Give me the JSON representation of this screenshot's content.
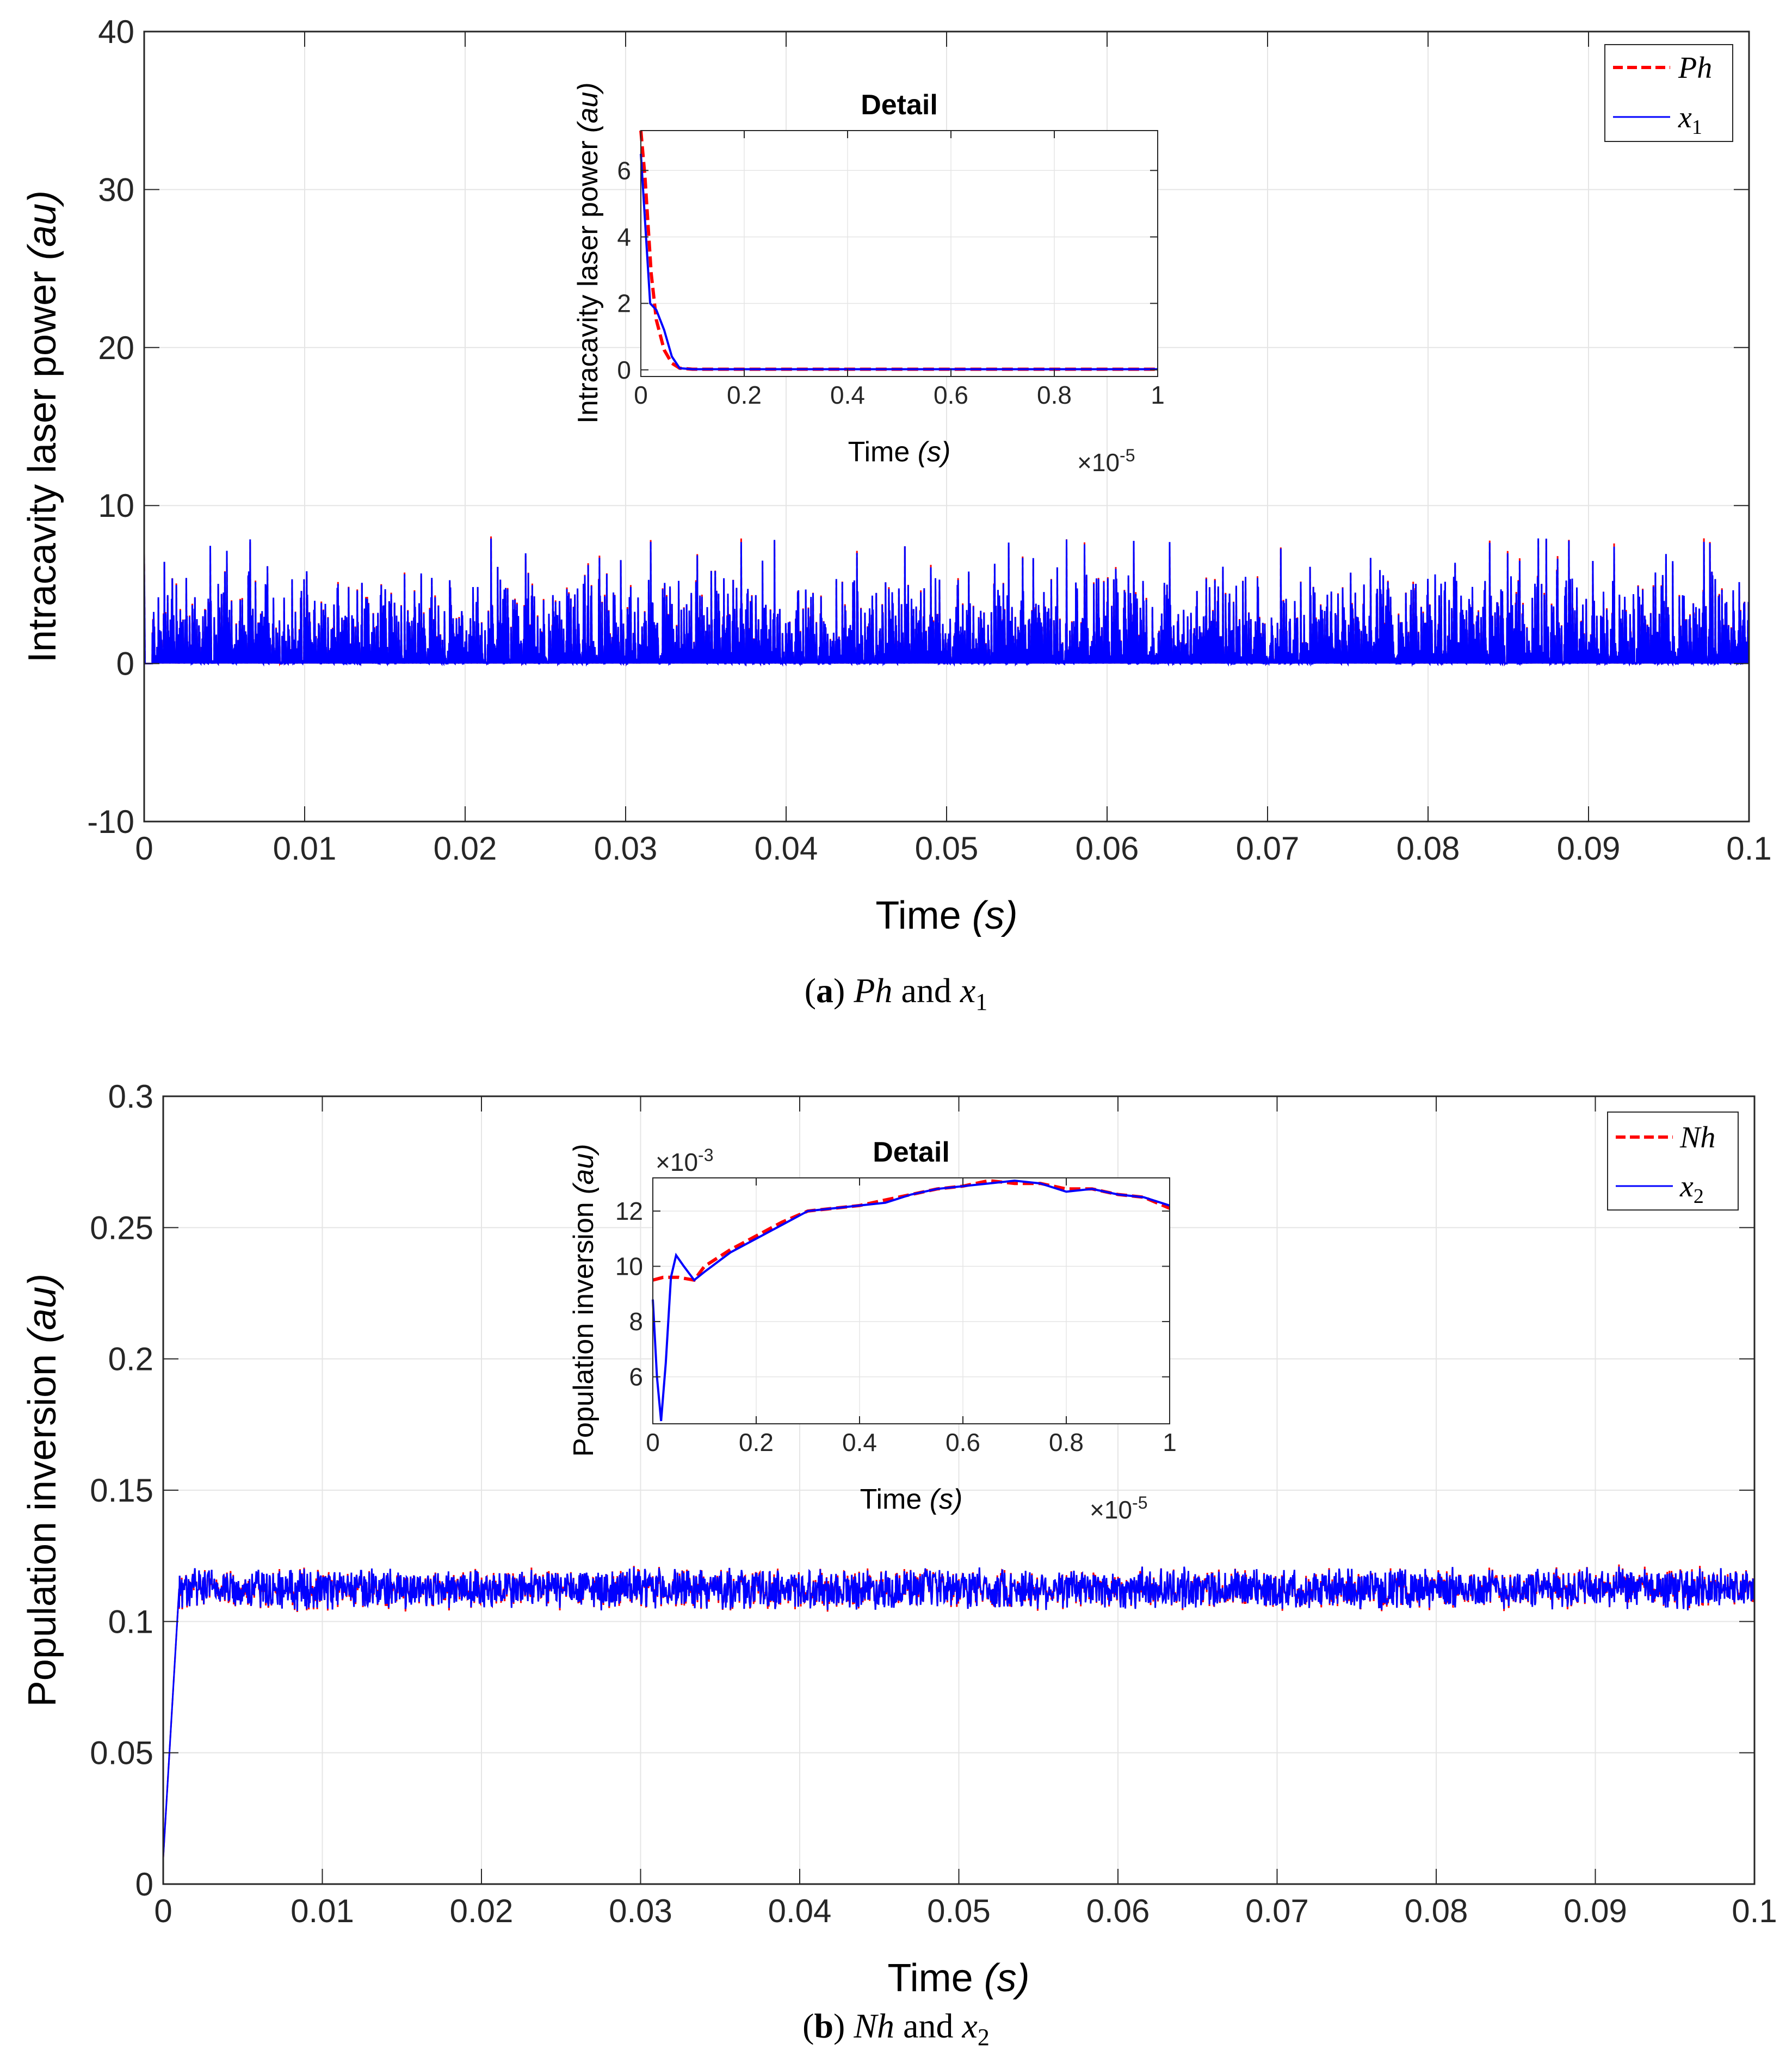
{
  "colors": {
    "dashed_series": "#ff0000",
    "solid_series": "#0000ff",
    "grid": "#e5e5e5",
    "axis": "#262626"
  },
  "chart_data": [
    {
      "id": "panel_a",
      "type": "line",
      "xlabel": "Time",
      "xlabel_unit": "(s)",
      "ylabel": "Intracavity laser power",
      "ylabel_unit": "(au)",
      "xlim": [
        0,
        0.1
      ],
      "ylim": [
        -10,
        40
      ],
      "x_ticks": [
        "0",
        "0.01",
        "0.02",
        "0.03",
        "0.04",
        "0.05",
        "0.06",
        "0.07",
        "0.08",
        "0.09",
        "0.1"
      ],
      "y_ticks": [
        "-10",
        "0",
        "10",
        "20",
        "30",
        "40"
      ],
      "grid": true,
      "legend_position": "top-right",
      "series": [
        {
          "name": "Ph",
          "style": "dashed",
          "color": "#ff0000",
          "description": "initial spike near 7, then chaotic pulses between 0 and about 8"
        },
        {
          "name": "x1",
          "style": "solid",
          "color": "#0000ff",
          "description": "tracks Ph; chaotic pulses between 0 and about 8"
        }
      ],
      "signal": {
        "initial": 7,
        "baseline": 0,
        "typical_peak": 4.5,
        "max_peak": 8
      },
      "caption": {
        "label": "a",
        "text": "Ph and x1"
      },
      "inset": {
        "title": "Detail",
        "xlabel": "Time",
        "xlabel_unit": "(s)",
        "ylabel": "Intracavity laser power",
        "ylabel_unit": "(au)",
        "xlim": [
          0,
          1
        ],
        "ylim": [
          -0.2,
          7.2
        ],
        "x_exponent_base": "×10",
        "x_exponent": "-5",
        "x_ticks": [
          "0",
          "0.2",
          "0.4",
          "0.6",
          "0.8",
          "1"
        ],
        "y_ticks": [
          "0",
          "2",
          "4",
          "6"
        ],
        "series": [
          {
            "name": "Ph",
            "x": [
              0,
              0.008,
              0.02,
              0.03,
              0.045,
              0.06,
              0.075,
              0.1,
              0.3,
              0.6,
              1.0
            ],
            "y": [
              7.2,
              5.8,
              2.9,
              1.5,
              0.6,
              0.2,
              0.05,
              0.02,
              0.02,
              0.02,
              0.02
            ]
          },
          {
            "name": "x1",
            "x": [
              0,
              0.008,
              0.018,
              0.03,
              0.045,
              0.06,
              0.075,
              0.1,
              0.3,
              0.6,
              1.0
            ],
            "y": [
              6.5,
              4.5,
              2.0,
              1.8,
              1.2,
              0.4,
              0.05,
              0.02,
              0.02,
              0.02,
              0.02
            ]
          }
        ]
      }
    },
    {
      "id": "panel_b",
      "type": "line",
      "xlabel": "Time",
      "xlabel_unit": "(s)",
      "ylabel": "Population inversion",
      "ylabel_unit": "(au)",
      "xlim": [
        0,
        0.1
      ],
      "ylim": [
        0,
        0.3
      ],
      "x_ticks": [
        "0",
        "0.01",
        "0.02",
        "0.03",
        "0.04",
        "0.05",
        "0.06",
        "0.07",
        "0.08",
        "0.09",
        "0.1"
      ],
      "y_ticks": [
        "0",
        "0.05",
        "0.1",
        "0.15",
        "0.2",
        "0.25",
        "0.3"
      ],
      "grid": true,
      "legend_position": "top-right",
      "series": [
        {
          "name": "Nh",
          "style": "dashed",
          "color": "#ff0000",
          "description": "rises from ~0.01 to ~0.112 by t≈0.001 s, then oscillates 0.104–0.121"
        },
        {
          "name": "x2",
          "style": "solid",
          "color": "#0000ff",
          "description": "tracks Nh"
        }
      ],
      "signal": {
        "initial": 0.01,
        "settle_time": 0.001,
        "mean": 0.1125,
        "low": 0.104,
        "high": 0.121
      },
      "caption": {
        "label": "b",
        "text": "Nh and x2"
      },
      "inset": {
        "title": "Detail",
        "xlabel": "Time",
        "xlabel_unit": "(s)",
        "ylabel": "Population inversion",
        "ylabel_unit": "(au)",
        "xlim": [
          0,
          1
        ],
        "ylim": [
          4.3,
          13.2
        ],
        "x_exponent_base": "×10",
        "x_exponent": "-5",
        "y_exponent_base": "×10",
        "y_exponent": "-3",
        "x_ticks": [
          "0",
          "0.2",
          "0.4",
          "0.6",
          "0.8",
          "1"
        ],
        "y_ticks": [
          "6",
          "8",
          "10",
          "12"
        ],
        "series": [
          {
            "name": "Nh",
            "x": [
              0,
              0.02,
              0.05,
              0.08,
              0.1,
              0.15,
              0.2,
              0.25,
              0.3,
              0.35,
              0.4,
              0.45,
              0.5,
              0.55,
              0.6,
              0.65,
              0.7,
              0.75,
              0.8,
              0.85,
              0.9,
              0.95,
              1.0
            ],
            "y": [
              9.5,
              9.6,
              9.6,
              9.5,
              10.0,
              10.6,
              11.1,
              11.6,
              12.0,
              12.1,
              12.2,
              12.4,
              12.6,
              12.8,
              12.9,
              13.1,
              13.0,
              13.0,
              12.8,
              12.8,
              12.6,
              12.5,
              12.1
            ]
          },
          {
            "name": "x2",
            "x": [
              0,
              0.008,
              0.016,
              0.025,
              0.035,
              0.045,
              0.06,
              0.08,
              0.1,
              0.15,
              0.2,
              0.25,
              0.3,
              0.35,
              0.4,
              0.45,
              0.5,
              0.55,
              0.6,
              0.65,
              0.7,
              0.75,
              0.8,
              0.85,
              0.9,
              0.95,
              1.0
            ],
            "y": [
              8.8,
              6.0,
              4.4,
              6.5,
              9.6,
              10.4,
              10.0,
              9.5,
              9.8,
              10.5,
              11.0,
              11.5,
              12.0,
              12.1,
              12.2,
              12.3,
              12.6,
              12.8,
              12.9,
              13.0,
              13.1,
              13.0,
              12.7,
              12.8,
              12.6,
              12.5,
              12.2
            ]
          }
        ]
      }
    }
  ]
}
